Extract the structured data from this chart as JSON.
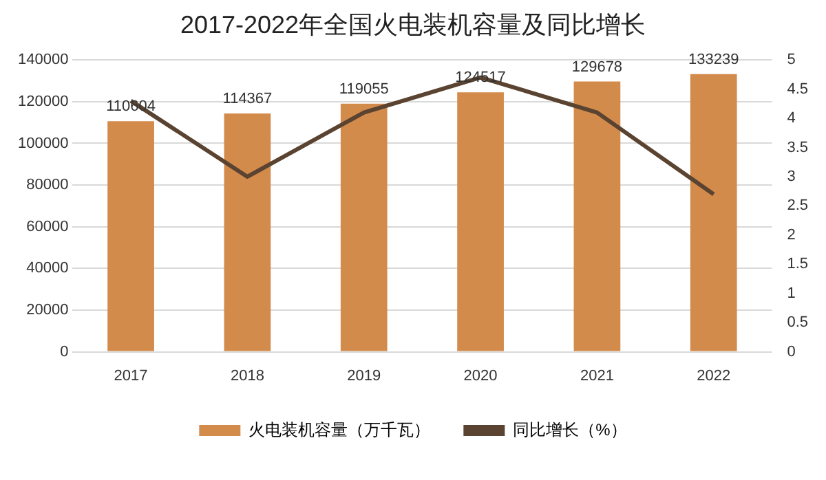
{
  "chart_data": {
    "type": "bar",
    "title": "2017-2022年全国火电装机容量及同比增长",
    "categories": [
      "2017",
      "2018",
      "2019",
      "2020",
      "2021",
      "2022"
    ],
    "series": [
      {
        "name": "火电装机容量（万千瓦）",
        "color": "#d38b4c",
        "values": [
          110604,
          114367,
          119055,
          124517,
          129678,
          133239
        ],
        "data_labels": true
      },
      {
        "name": "同比增长（%）",
        "type": "line",
        "axis": "y2",
        "color": "#5a4330",
        "values": [
          4.3,
          3.0,
          4.1,
          4.7,
          4.1,
          2.7
        ],
        "marker": "none"
      }
    ],
    "ylim": [
      0,
      140000
    ],
    "yticks": [
      0,
      20000,
      40000,
      60000,
      80000,
      100000,
      120000,
      140000
    ],
    "y2lim": [
      0,
      5
    ],
    "y2ticks": [
      0,
      0.5,
      1,
      1.5,
      2,
      2.5,
      3,
      3.5,
      4,
      4.5,
      5
    ],
    "grid": "y",
    "legend": "bottom"
  }
}
